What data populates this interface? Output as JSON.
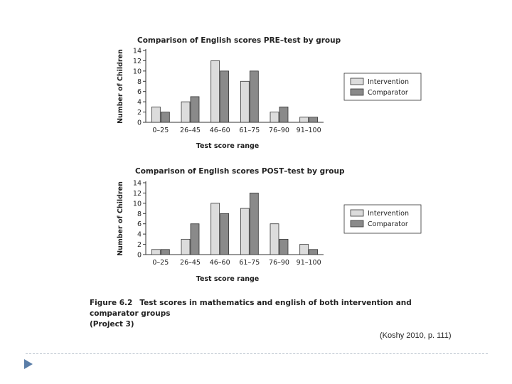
{
  "chart_data": [
    {
      "type": "bar",
      "title": "Comparison of English scores PRE–test by group",
      "xlabel": "Test score range",
      "ylabel": "Number of Children",
      "categories": [
        "0–25",
        "26–45",
        "46–60",
        "61–75",
        "76–90",
        "91–100"
      ],
      "series": [
        {
          "name": "Intervention",
          "color": "#dcdcdc",
          "values": [
            3,
            4,
            12,
            8,
            2,
            1
          ]
        },
        {
          "name": "Comparator",
          "color": "#8a8a8a",
          "values": [
            2,
            5,
            10,
            10,
            3,
            1
          ]
        }
      ],
      "ylim": [
        0,
        14
      ],
      "yticks": [
        "0",
        "2",
        "4",
        "6",
        "8",
        "10",
        "12",
        "14"
      ],
      "legend_position": "right"
    },
    {
      "type": "bar",
      "title": "Comparison of English scores POST–test by group",
      "xlabel": "Test score range",
      "ylabel": "Number of Children",
      "categories": [
        "0–25",
        "26–45",
        "46–60",
        "61–75",
        "76–90",
        "91–100"
      ],
      "series": [
        {
          "name": "Intervention",
          "color": "#dcdcdc",
          "values": [
            1,
            3,
            10,
            9,
            6,
            2
          ]
        },
        {
          "name": "Comparator",
          "color": "#8a8a8a",
          "values": [
            1,
            6,
            8,
            12,
            3,
            1
          ]
        }
      ],
      "ylim": [
        0,
        14
      ],
      "yticks": [
        "0",
        "2",
        "4",
        "6",
        "8",
        "10",
        "12",
        "14"
      ],
      "legend_position": "right"
    }
  ],
  "caption": {
    "figure_number": "Figure 6.2",
    "text": "Test scores in mathematics and english of both intervention and comparator groups",
    "project": "(Project 3)"
  },
  "citation": "(Koshy 2010, p. 111)"
}
